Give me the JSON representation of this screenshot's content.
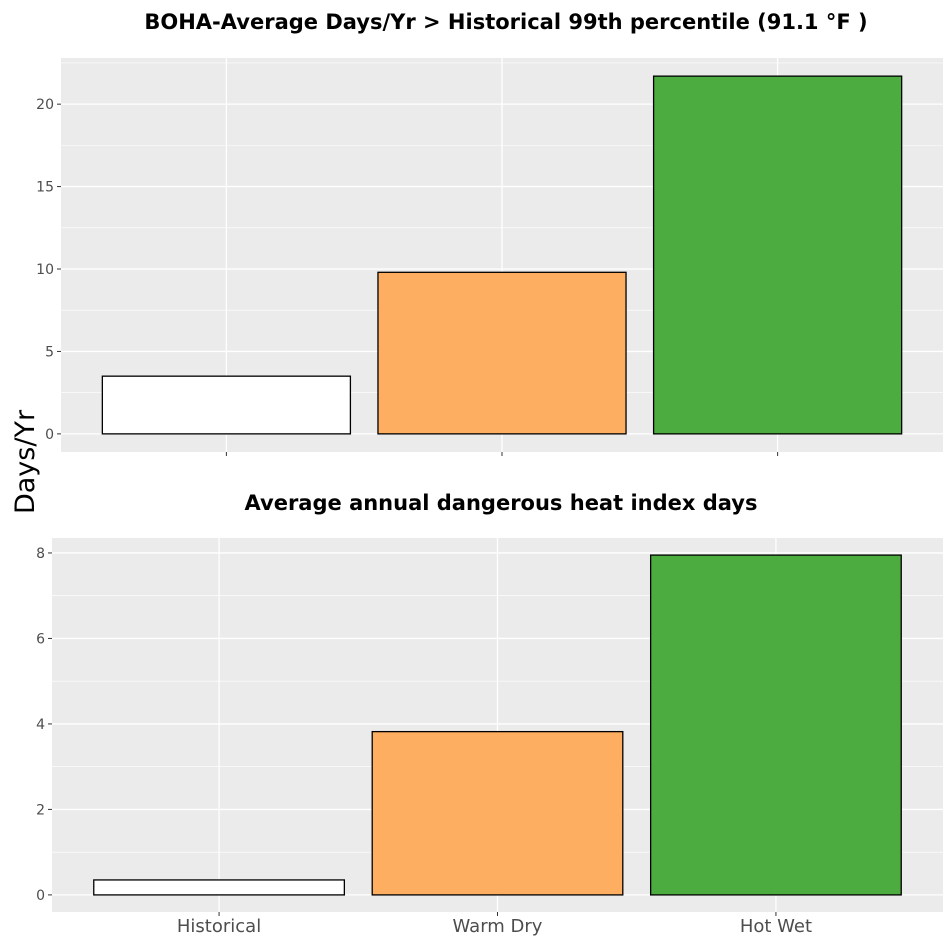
{
  "ylabel": "Days/Yr",
  "chart_data": [
    {
      "type": "bar",
      "title": "BOHA-Average Days/Yr > Historical 99th percentile (91.1 °F )",
      "categories": [
        "Historical",
        "Warm Dry",
        "Hot Wet"
      ],
      "values": [
        3.5,
        9.8,
        21.7
      ],
      "colors": [
        "#ffffff",
        "#fdae61",
        "#4dac40"
      ],
      "ylim": [
        -1.1,
        22.8
      ],
      "yticks": [
        "0",
        "5",
        "10",
        "15",
        "20"
      ],
      "show_x_tick_labels": false,
      "grid": true
    },
    {
      "type": "bar",
      "title": "Average annual dangerous heat index days",
      "categories": [
        "Historical",
        "Warm Dry",
        "Hot Wet"
      ],
      "values": [
        0.35,
        3.82,
        7.95
      ],
      "colors": [
        "#ffffff",
        "#fdae61",
        "#4dac40"
      ],
      "ylim": [
        -0.4,
        8.35
      ],
      "yticks": [
        "0",
        "2",
        "4",
        "6",
        "8"
      ],
      "show_x_tick_labels": true,
      "grid": true
    }
  ]
}
